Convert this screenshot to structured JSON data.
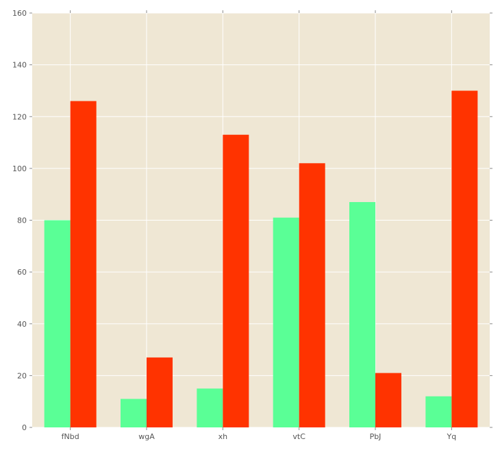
{
  "chart_data": {
    "type": "bar",
    "categories": [
      "fNbd",
      "wgA",
      "xh",
      "vtC",
      "PbJ",
      "Yq"
    ],
    "series": [
      {
        "values": [
          80,
          11,
          15,
          81,
          87,
          12
        ],
        "color": "#5aff96"
      },
      {
        "values": [
          126,
          27,
          113,
          102,
          21,
          130
        ],
        "color": "#ff3300"
      }
    ],
    "ylim": [
      0,
      160
    ],
    "yticks": [
      0,
      20,
      40,
      60,
      80,
      100,
      120,
      140,
      160
    ],
    "grid": true,
    "legend": "none",
    "colors": {
      "plot_background": "#efe7d4",
      "grid": "#ffffff",
      "tick_label": "#555555"
    }
  }
}
